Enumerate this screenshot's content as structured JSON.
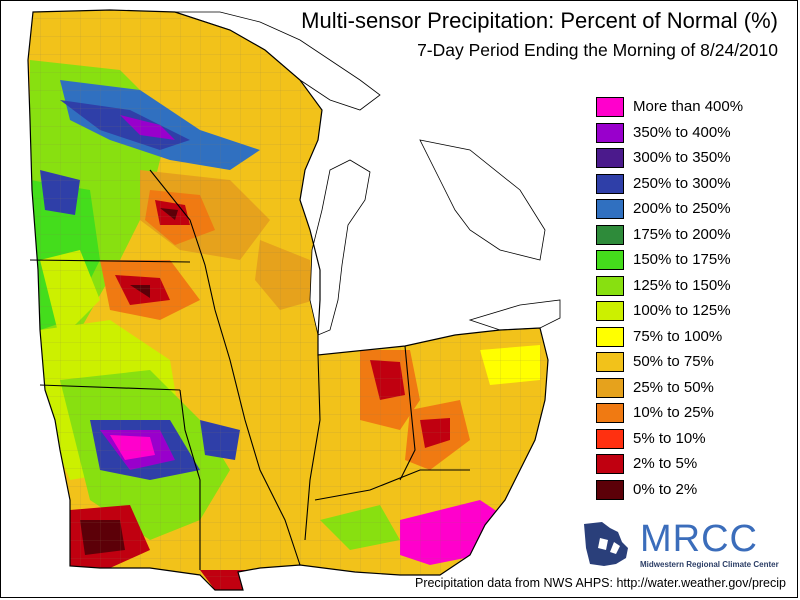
{
  "title": "Multi-sensor Precipitation: Percent of Normal (%)",
  "subtitle": "7-Day Period Ending the Morning of 8/24/2010",
  "legend": [
    {
      "label": "More than 400%",
      "color": "#ff00cc"
    },
    {
      "label": "350% to 400%",
      "color": "#9900cc"
    },
    {
      "label": "300% to 350%",
      "color": "#4b1a8c"
    },
    {
      "label": "250% to 300%",
      "color": "#2f3fa8"
    },
    {
      "label": "200% to 250%",
      "color": "#3070c0"
    },
    {
      "label": "175% to 200%",
      "color": "#2e8b3a"
    },
    {
      "label": "150% to 175%",
      "color": "#44dd1c"
    },
    {
      "label": "125% to 150%",
      "color": "#88e010"
    },
    {
      "label": "100% to 125%",
      "color": "#ccf000"
    },
    {
      "label": "75% to 100%",
      "color": "#ffff00"
    },
    {
      "label": "50% to 75%",
      "color": "#f2c21a"
    },
    {
      "label": "25% to 50%",
      "color": "#e6a21c"
    },
    {
      "label": "10% to 25%",
      "color": "#f07a12"
    },
    {
      "label": "5% to 10%",
      "color": "#ff3010"
    },
    {
      "label": "2% to 5%",
      "color": "#c00010"
    },
    {
      "label": "0% to 2%",
      "color": "#5c0008"
    }
  ],
  "logo": {
    "text": "MRCC",
    "subtext": "Midwestern Regional Climate Center"
  },
  "footer": "Precipitation data from NWS AHPS:  http://water.weather.gov/precip",
  "colors": {
    "lake": "#ffffff",
    "boundary": "#000000",
    "county": "#8a7a55"
  }
}
